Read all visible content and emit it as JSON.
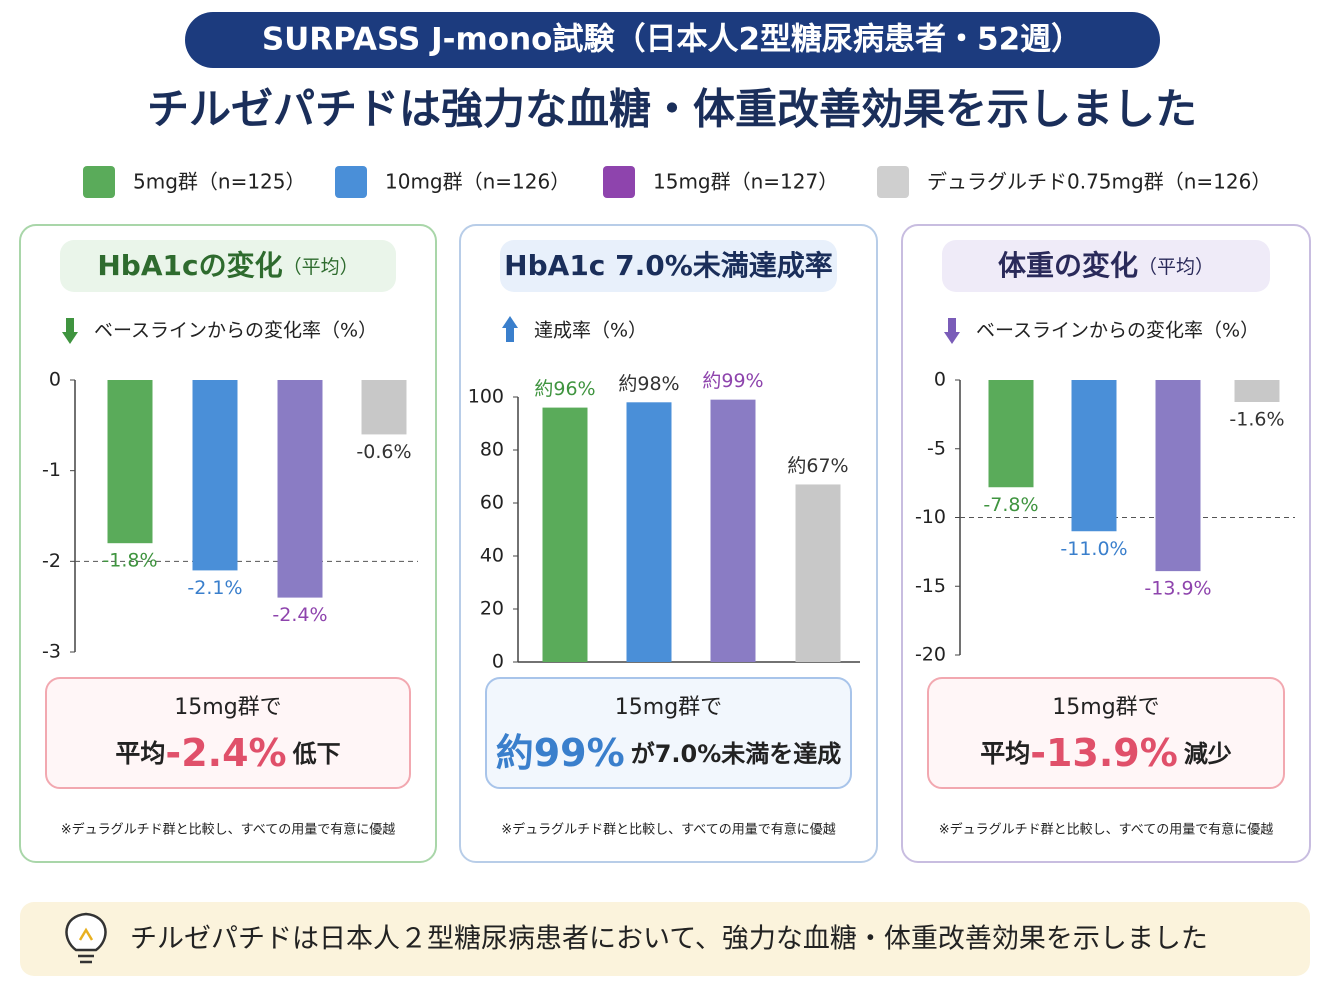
{
  "header": {
    "badge": "SURPASS J-mono試験（日本人2型糖尿病患者・52週）",
    "title": "チルゼパチドは強力な血糖・体重改善効果を示しました"
  },
  "legend": [
    {
      "name": "5mg群（n=125）",
      "color": "#5aab5a"
    },
    {
      "name": "10mg群（n=126）",
      "color": "#4a8fd8"
    },
    {
      "name": "15mg群（n=127）",
      "color": "#8e44ad"
    },
    {
      "name": "デュラグルチド0.75mg群（n=126）",
      "color": "#cfcfcf"
    }
  ],
  "chart_data": [
    {
      "type": "bar",
      "title": "HbA1cの変化",
      "subtitle": "（平均）",
      "axis_label": "ベースラインからの変化率（%）",
      "values": [
        -1.8,
        -2.1,
        -2.4,
        -0.6
      ],
      "value_labels": [
        "-1.8%",
        "-2.1%",
        "-2.4%",
        "-0.6%"
      ],
      "colors": [
        "#5aab5a",
        "#4a8fd8",
        "#8a7cc4",
        "#c8c8c8"
      ],
      "label_colors": [
        "#3f943f",
        "#3a7fcc",
        "#8e44ad",
        "#333333"
      ],
      "ylim": [
        -3,
        0
      ],
      "yticks": [
        0,
        -1,
        -2,
        -3
      ],
      "reference_line": -2,
      "grid": false,
      "callout": {
        "line1": "15mg群で",
        "pre": "平均",
        "highlight": "-2.4%",
        "post": "低下"
      },
      "note": "※デュラグルチド群と比較し、すべての用量で有意に優越"
    },
    {
      "type": "bar",
      "title": "HbA1c 7.0%未満達成率",
      "axis_label": "達成率（%）",
      "values": [
        96,
        98,
        99,
        67
      ],
      "value_labels": [
        "約96%",
        "約98%",
        "約99%",
        "約67%"
      ],
      "colors": [
        "#5aab5a",
        "#4a8fd8",
        "#8a7cc4",
        "#c8c8c8"
      ],
      "label_colors": [
        "#3f943f",
        "#333333",
        "#8e44ad",
        "#333333"
      ],
      "ylim": [
        0,
        100
      ],
      "yticks": [
        0,
        20,
        40,
        60,
        80,
        100
      ],
      "grid": false,
      "callout": {
        "line1": "15mg群で",
        "pre": "",
        "highlight": "約99%",
        "post": "が7.0%未満を達成"
      },
      "note": "※デュラグルチド群と比較し、すべての用量で有意に優越"
    },
    {
      "type": "bar",
      "title": "体重の変化",
      "subtitle": "（平均）",
      "axis_label": "ベースラインからの変化率（%）",
      "values": [
        -7.8,
        -11.0,
        -13.9,
        -1.6
      ],
      "value_labels": [
        "-7.8%",
        "-11.0%",
        "-13.9%",
        "-1.6%"
      ],
      "colors": [
        "#5aab5a",
        "#4a8fd8",
        "#8a7cc4",
        "#c8c8c8"
      ],
      "label_colors": [
        "#3f943f",
        "#3a7fcc",
        "#8e44ad",
        "#333333"
      ],
      "ylim": [
        -20,
        0
      ],
      "yticks": [
        0,
        -5,
        -10,
        -15,
        -20
      ],
      "reference_line": -10,
      "grid": false,
      "callout": {
        "line1": "15mg群で",
        "pre": "平均",
        "highlight": "-13.9%",
        "post": "減少"
      },
      "note": "※デュラグルチド群と比較し、すべての用量で有意に優越"
    }
  ],
  "footer": {
    "text": "チルゼパチドは日本人２型糖尿病患者において、強力な血糖・体重改善効果を示しました"
  }
}
